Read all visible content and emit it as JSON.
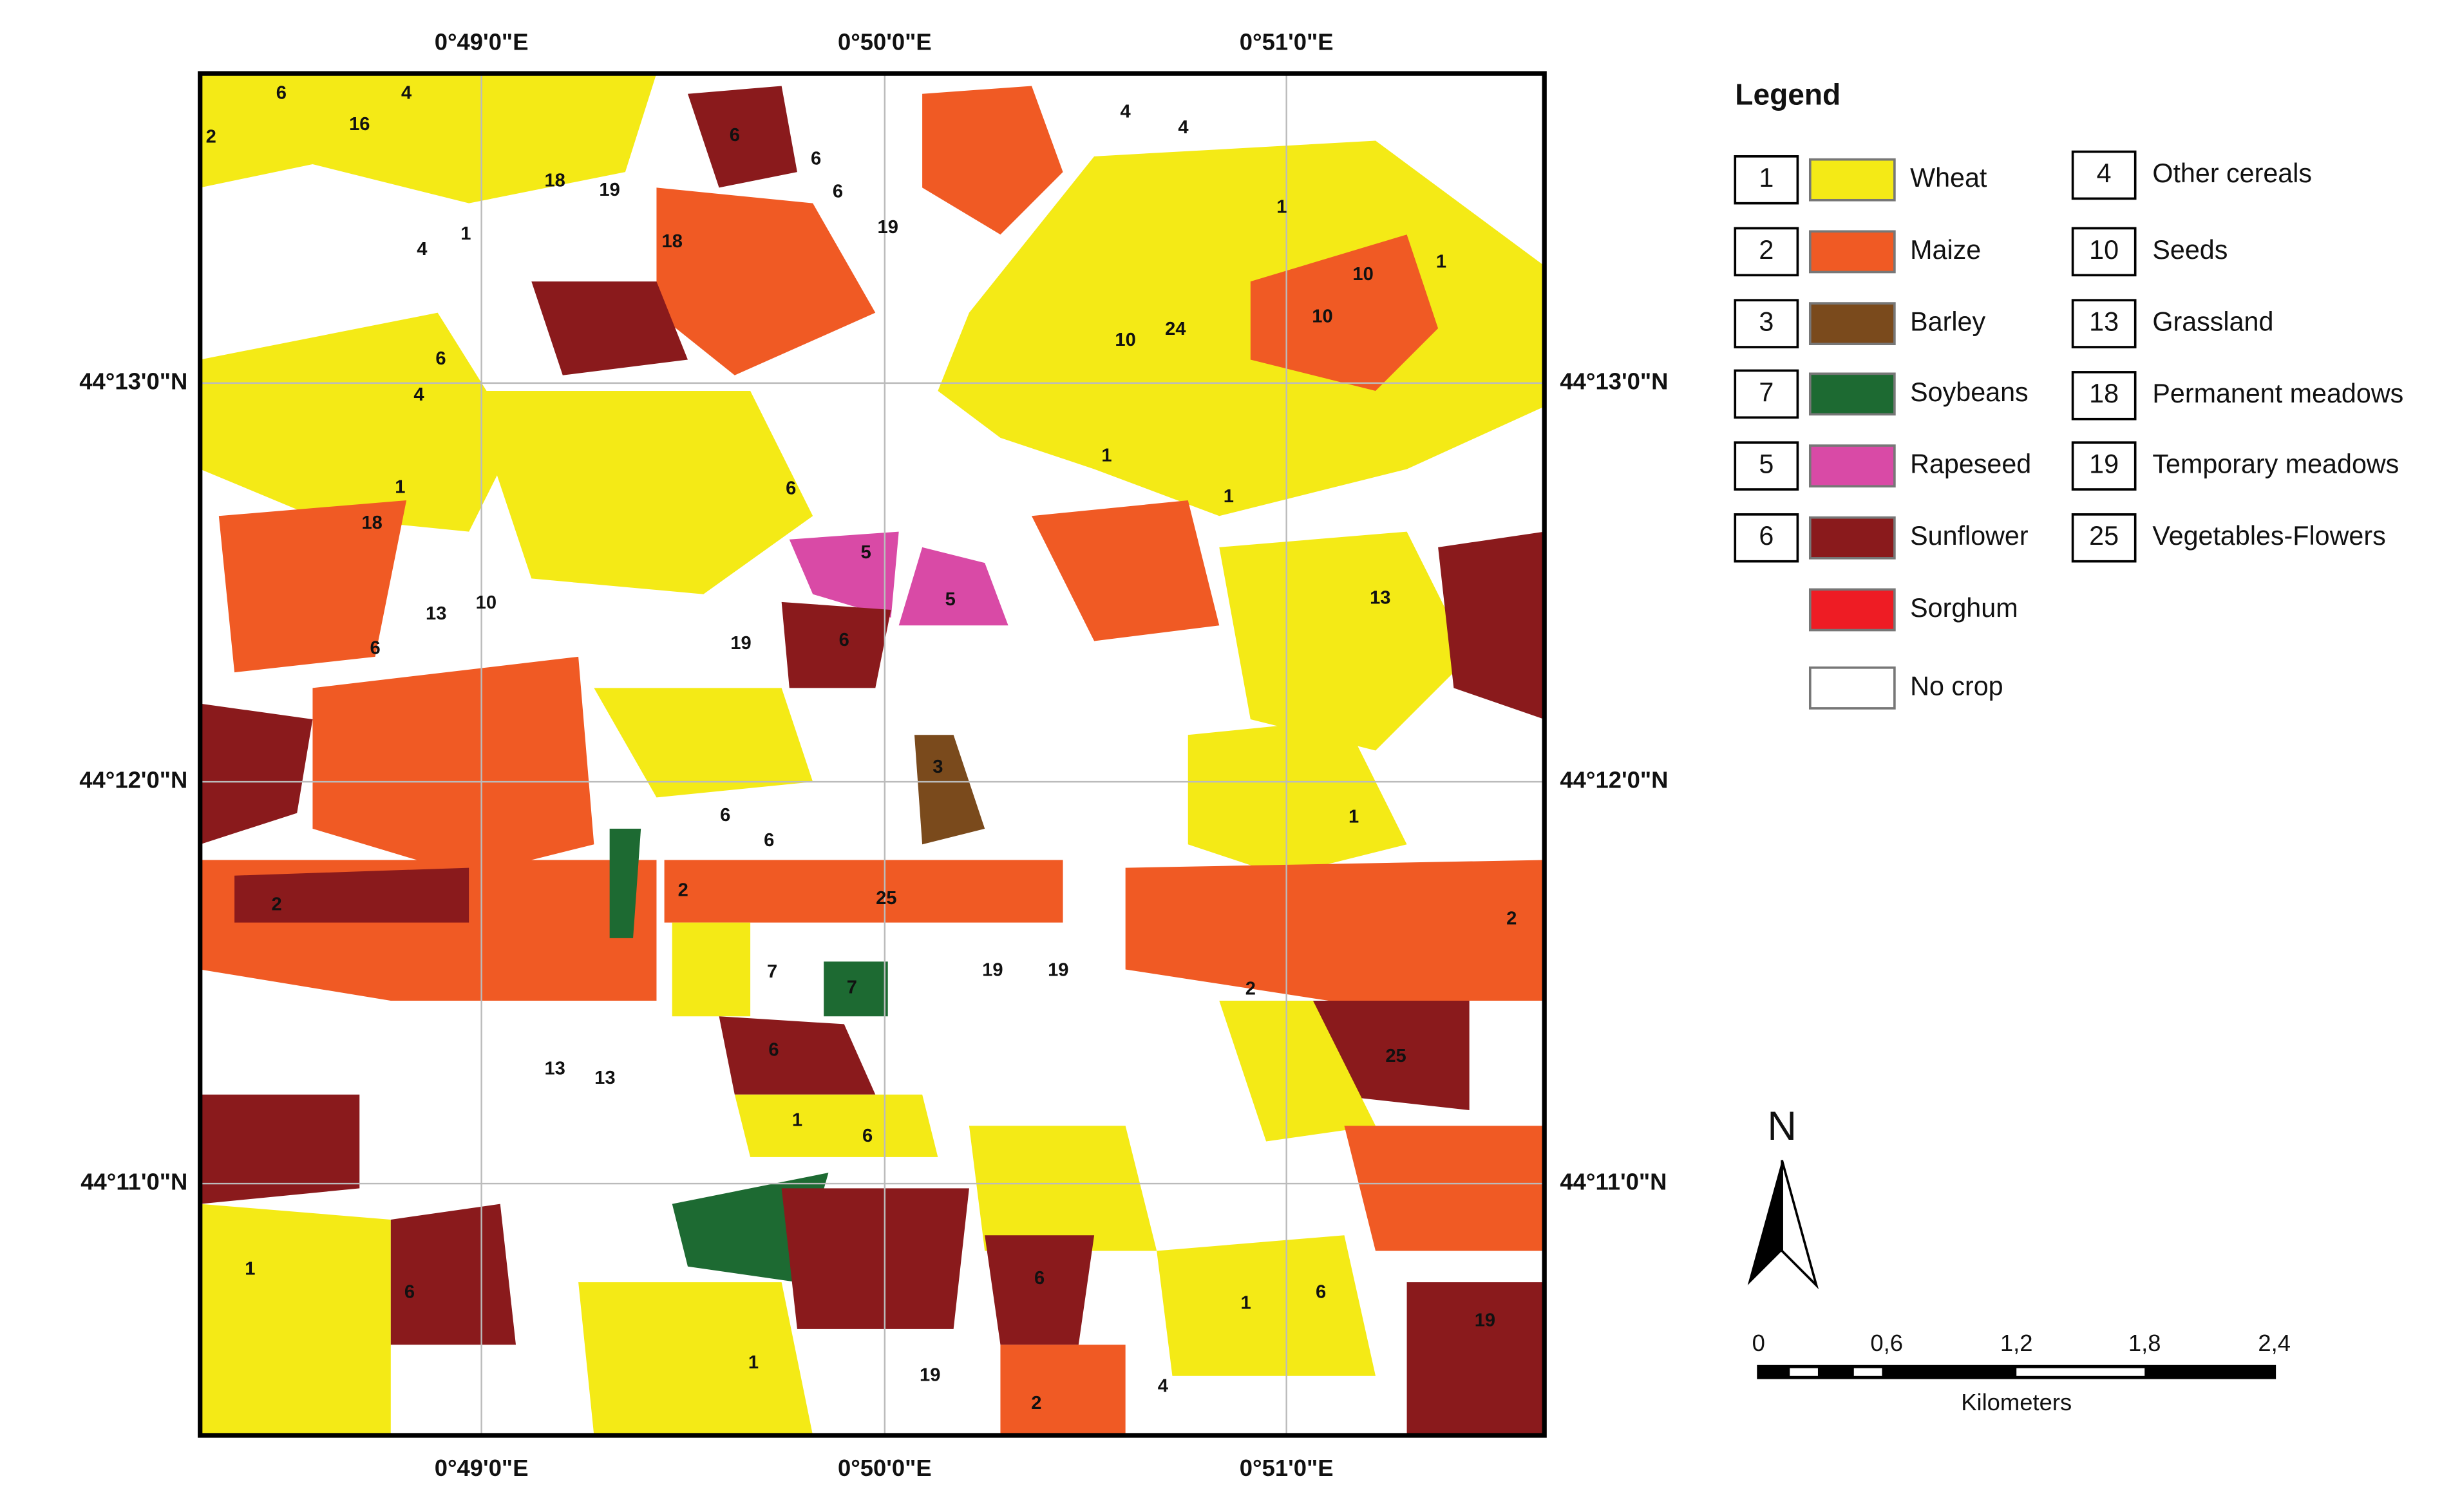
{
  "map": {
    "lon_labels": [
      "0°49'0\"E",
      "0°50'0\"E",
      "0°51'0\"E"
    ],
    "lat_labels": [
      "44°13'0\"N",
      "44°12'0\"N",
      "44°11'0\"N"
    ],
    "parcels": [
      "6",
      "16",
      "4",
      "2",
      "6",
      "4",
      "4",
      "6",
      "6",
      "19",
      "18",
      "19",
      "18",
      "4",
      "1",
      "1",
      "10",
      "10",
      "1",
      "10",
      "24",
      "6",
      "4",
      "1",
      "18",
      "6",
      "5",
      "5",
      "1",
      "1",
      "10",
      "13",
      "6",
      "6",
      "19",
      "13",
      "1",
      "3",
      "6",
      "6",
      "25",
      "2",
      "2",
      "2",
      "2",
      "7",
      "7",
      "19",
      "19",
      "6",
      "25",
      "13",
      "13",
      "1",
      "6",
      "1",
      "6",
      "1",
      "6",
      "1",
      "6",
      "2",
      "4",
      "19",
      "19"
    ]
  },
  "legend": {
    "title": "Legend",
    "crops": [
      {
        "code": "1",
        "name": "Wheat",
        "color": "#f4ea16"
      },
      {
        "code": "2",
        "name": "Maize",
        "color": "#f05a24"
      },
      {
        "code": "3",
        "name": "Barley",
        "color": "#7a4a1c"
      },
      {
        "code": "7",
        "name": "Soybeans",
        "color": "#1d6a32"
      },
      {
        "code": "5",
        "name": "Rapeseed",
        "color": "#d94aa6"
      },
      {
        "code": "6",
        "name": "Sunflower",
        "color": "#8a1a1c"
      },
      {
        "name": "Sorghum",
        "color": "#ee1c24"
      },
      {
        "name": "No crop",
        "color": "#ffffff"
      }
    ],
    "other": [
      {
        "code": "4",
        "name": "Other cereals"
      },
      {
        "code": "10",
        "name": "Seeds"
      },
      {
        "code": "13",
        "name": "Grassland"
      },
      {
        "code": "18",
        "name": "Permanent meadows"
      },
      {
        "code": "19",
        "name": "Temporary meadows"
      },
      {
        "code": "25",
        "name": "Vegetables-Flowers"
      }
    ]
  },
  "north": "N",
  "scale_bar": {
    "labels": [
      "0",
      "0,6",
      "1,2",
      "1,8",
      "2,4"
    ],
    "unit": "Kilometers"
  }
}
